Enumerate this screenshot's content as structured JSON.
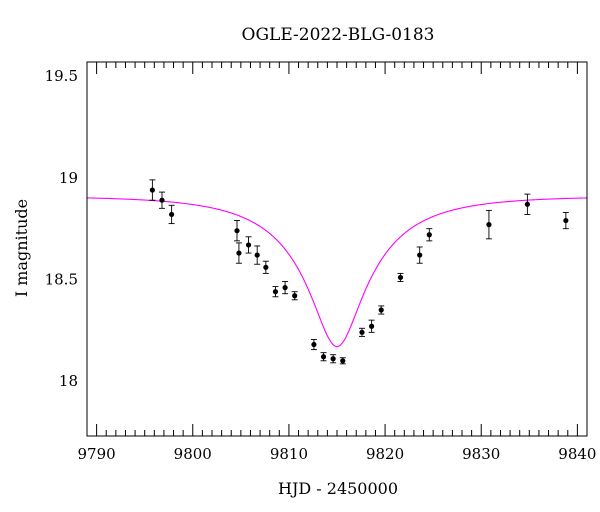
{
  "chart_data": {
    "type": "scatter",
    "title": "OGLE-2022-BLG-0183",
    "xlabel": "HJD - 2450000",
    "ylabel": "I magnitude",
    "xlim": [
      9789,
      9841
    ],
    "ylim": [
      19.57,
      17.73
    ],
    "y_inverted": true,
    "x_ticks": [
      9790,
      9800,
      9810,
      9820,
      9830,
      9840
    ],
    "y_ticks": [
      18,
      18.5,
      19,
      19.5
    ],
    "grid": false,
    "legend": "none",
    "colors": {
      "points": "#000000",
      "model": "#ff00ff",
      "axes": "#000000"
    },
    "points": [
      {
        "x": 9795.8,
        "y": 18.94,
        "err": 0.05
      },
      {
        "x": 9796.8,
        "y": 18.89,
        "err": 0.04
      },
      {
        "x": 9797.8,
        "y": 18.82,
        "err": 0.045
      },
      {
        "x": 9804.6,
        "y": 18.74,
        "err": 0.05
      },
      {
        "x": 9804.8,
        "y": 18.63,
        "err": 0.05
      },
      {
        "x": 9805.8,
        "y": 18.67,
        "err": 0.04
      },
      {
        "x": 9806.7,
        "y": 18.62,
        "err": 0.045
      },
      {
        "x": 9807.6,
        "y": 18.56,
        "err": 0.03
      },
      {
        "x": 9808.6,
        "y": 18.44,
        "err": 0.025
      },
      {
        "x": 9809.6,
        "y": 18.46,
        "err": 0.03
      },
      {
        "x": 9810.6,
        "y": 18.42,
        "err": 0.02
      },
      {
        "x": 9812.6,
        "y": 18.18,
        "err": 0.025
      },
      {
        "x": 9813.6,
        "y": 18.12,
        "err": 0.02
      },
      {
        "x": 9814.6,
        "y": 18.11,
        "err": 0.02
      },
      {
        "x": 9815.6,
        "y": 18.1,
        "err": 0.015
      },
      {
        "x": 9817.6,
        "y": 18.24,
        "err": 0.02
      },
      {
        "x": 9818.6,
        "y": 18.27,
        "err": 0.03
      },
      {
        "x": 9819.6,
        "y": 18.35,
        "err": 0.02
      },
      {
        "x": 9821.6,
        "y": 18.51,
        "err": 0.02
      },
      {
        "x": 9823.6,
        "y": 18.62,
        "err": 0.04
      },
      {
        "x": 9824.6,
        "y": 18.72,
        "err": 0.03
      },
      {
        "x": 9830.8,
        "y": 18.77,
        "err": 0.07
      },
      {
        "x": 9834.8,
        "y": 18.87,
        "err": 0.05
      },
      {
        "x": 9838.8,
        "y": 18.79,
        "err": 0.04
      }
    ],
    "model": {
      "type": "point-lens (Paczynski) fit",
      "t0": 9815.0,
      "tE": 10.0,
      "u0": 0.24,
      "m_base": 18.91,
      "flux_source_fraction": 0.3
    }
  }
}
